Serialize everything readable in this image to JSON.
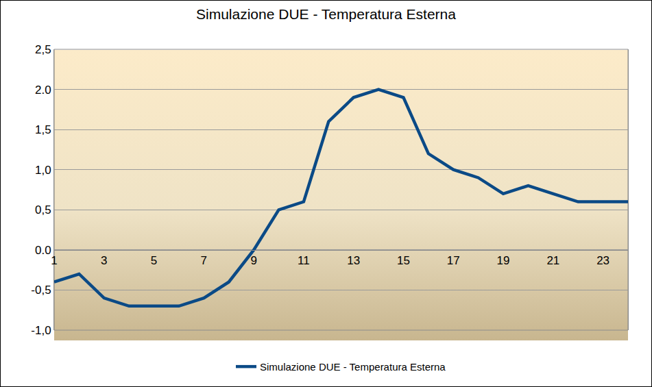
{
  "chart_data": {
    "type": "line",
    "title": "Simulazione DUE - Temperatura Esterna",
    "x": [
      1,
      2,
      3,
      4,
      5,
      6,
      7,
      8,
      9,
      10,
      11,
      12,
      13,
      14,
      15,
      16,
      17,
      18,
      19,
      20,
      21,
      22,
      23,
      24
    ],
    "series": [
      {
        "name": "Simulazione DUE - Temperatura Esterna",
        "color": "#0b4a86",
        "values": [
          -0.4,
          -0.3,
          -0.6,
          -0.7,
          -0.7,
          -0.7,
          -0.6,
          -0.4,
          0.0,
          0.5,
          0.6,
          1.6,
          1.9,
          2.0,
          1.9,
          1.2,
          1.0,
          0.9,
          0.7,
          0.8,
          0.7,
          0.6,
          0.6,
          0.6
        ]
      }
    ],
    "xlim": [
      1,
      24
    ],
    "xticks": [
      1,
      3,
      5,
      7,
      9,
      11,
      13,
      15,
      17,
      19,
      21,
      23
    ],
    "ylim": [
      -1.0,
      2.5
    ],
    "yticks": [
      {
        "value": -1.0,
        "label": "-1,0"
      },
      {
        "value": -0.5,
        "label": "-0,5"
      },
      {
        "value": 0.0,
        "label": "0.0"
      },
      {
        "value": 0.5,
        "label": "0,5"
      },
      {
        "value": 1.0,
        "label": "1,0"
      },
      {
        "value": 1.5,
        "label": "1,5"
      },
      {
        "value": 2.0,
        "label": "2.0"
      },
      {
        "value": 2.5,
        "label": "2,5"
      }
    ],
    "grid": true,
    "legend": "bottom"
  }
}
